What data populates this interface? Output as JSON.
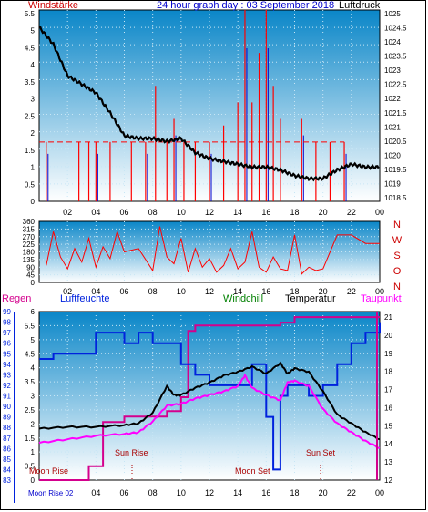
{
  "colors": {
    "bg_top": "#0a86c8",
    "bg_bottom": "#ffffff",
    "grid": "#c8e6f5",
    "red_label": "#cc0000",
    "blue_label": "#0000cc",
    "pressure": "#000000",
    "wind": "#ff0000",
    "windchill": "#008000",
    "temperature": "#000000",
    "taupunkt": "#ff00ff",
    "humidity": "#0022dd",
    "rain": "#d4008d",
    "dir": "#ff0000"
  },
  "top": {
    "title": "24 hour graph day : 03 September 2018",
    "left_label": "Windstärke",
    "right_label": "Luftdruck",
    "wind_axis": [
      "5.5",
      "5",
      "4.5",
      "4",
      "3.5",
      "3",
      "2.5",
      "2",
      "1.5",
      "1",
      "0.5",
      "0"
    ],
    "pressure_axis": [
      "1025",
      "1024.5",
      "1024",
      "1023.5",
      "1023",
      "1022.5",
      "1022",
      "1021.5",
      "1021",
      "1020.5",
      "1020",
      "1019.5",
      "1019",
      "1018.5"
    ],
    "x_ticks": [
      "02",
      "04",
      "06",
      "08",
      "10",
      "12",
      "14",
      "16",
      "18",
      "20",
      "22",
      "00"
    ]
  },
  "mid": {
    "dir_axis": [
      "360",
      "315",
      "270",
      "225",
      "180",
      "135",
      "90",
      "45",
      "0"
    ],
    "compass": [
      "N",
      "W",
      "S",
      "O",
      "N"
    ],
    "x_ticks": [
      "02",
      "04",
      "06",
      "08",
      "10",
      "12",
      "14",
      "16",
      "18",
      "20",
      "22",
      "00"
    ]
  },
  "bottom": {
    "labels": {
      "regen": "Regen",
      "luftfeuchte": "Luftfeuchte",
      "windchill": "Windchill",
      "temperatur": "Temperatur",
      "taupunkt": "Taupunkt"
    },
    "rain_axis": [
      "99",
      "98",
      "97",
      "96",
      "95",
      "94",
      "93",
      "92",
      "91",
      "90",
      "89",
      "88",
      "87",
      "86",
      "85",
      "84",
      "83"
    ],
    "hum_axis": [
      "6",
      "5.5",
      "5",
      "4.5",
      "4",
      "3.5",
      "3",
      "2.5",
      "2",
      "1.5",
      "1",
      "0.5",
      "0"
    ],
    "temp_axis": [
      "21",
      "20",
      "19",
      "18",
      "17",
      "16",
      "15",
      "14",
      "13",
      "12"
    ],
    "annotations": {
      "sun_rise": "Sun Rise",
      "sun_set": "Sun Set",
      "moon_rise_inner": "Moon Rise",
      "moon_set": "Moon Set",
      "moon_rise_bottom": "Moon Rise 02"
    },
    "x_ticks": [
      "04",
      "06",
      "08",
      "10",
      "12",
      "14",
      "16",
      "18",
      "20",
      "22",
      "00"
    ]
  },
  "chart_data": [
    {
      "type": "line",
      "title": "24 hour graph day : 03 September 2018",
      "xlabel": "",
      "x": [
        "00",
        "02",
        "04",
        "06",
        "08",
        "10",
        "12",
        "14",
        "16",
        "18",
        "20",
        "22",
        "00"
      ],
      "series": [
        {
          "name": "Luftdruck",
          "axis": "right",
          "ylim": [
            1018.5,
            1025.2
          ],
          "points": [
            [
              0,
              1024.6
            ],
            [
              1,
              1024.0
            ],
            [
              2,
              1022.9
            ],
            [
              3,
              1022.6
            ],
            [
              4,
              1022.3
            ],
            [
              5,
              1021.6
            ],
            [
              6,
              1020.8
            ],
            [
              7,
              1020.7
            ],
            [
              8,
              1020.7
            ],
            [
              9,
              1020.6
            ],
            [
              10,
              1020.7
            ],
            [
              11,
              1020.2
            ],
            [
              12,
              1020.0
            ],
            [
              13,
              1019.9
            ],
            [
              14,
              1019.8
            ],
            [
              15,
              1019.7
            ],
            [
              16,
              1019.7
            ],
            [
              17,
              1019.6
            ],
            [
              18,
              1019.4
            ],
            [
              19,
              1019.3
            ],
            [
              20,
              1019.3
            ],
            [
              21,
              1019.6
            ],
            [
              22,
              1019.8
            ],
            [
              23,
              1019.7
            ],
            [
              24,
              1019.7
            ]
          ]
        },
        {
          "name": "Windstärke",
          "axis": "left",
          "ylim": [
            0,
            5.8
          ],
          "points": [
            [
              0.5,
              1.8
            ],
            [
              2.8,
              1.8
            ],
            [
              3.5,
              1.8
            ],
            [
              4.0,
              1.8
            ],
            [
              5.0,
              1.8
            ],
            [
              6.5,
              1.8
            ],
            [
              7.5,
              1.8
            ],
            [
              8.2,
              3.5
            ],
            [
              9.0,
              1.8
            ],
            [
              9.5,
              2.5
            ],
            [
              10.2,
              1.8
            ],
            [
              11.0,
              1.8
            ],
            [
              12.0,
              1.8
            ],
            [
              13.0,
              2.3
            ],
            [
              14.0,
              3.0
            ],
            [
              14.5,
              5.8
            ],
            [
              15.0,
              3.0
            ],
            [
              15.5,
              4.5
            ],
            [
              16.0,
              5.8
            ],
            [
              16.5,
              3.5
            ],
            [
              17.0,
              2.5
            ],
            [
              18.5,
              2.5
            ],
            [
              19.5,
              1.8
            ],
            [
              20.5,
              1.8
            ],
            [
              21.5,
              1.8
            ]
          ]
        }
      ]
    },
    {
      "type": "scatter",
      "xlabel": "",
      "ylabel": "",
      "ylim": [
        0,
        360
      ],
      "x": [
        "02",
        "04",
        "06",
        "08",
        "10",
        "12",
        "14",
        "16",
        "18",
        "20",
        "22",
        "00"
      ],
      "series": [
        {
          "name": "",
          "points": [
            [
              0.5,
              100
            ],
            [
              1,
              300
            ],
            [
              1.5,
              150
            ],
            [
              2,
              80
            ],
            [
              2.5,
              200
            ],
            [
              3,
              120
            ],
            [
              3.5,
              260
            ],
            [
              4,
              90
            ],
            [
              4.5,
              210
            ],
            [
              5,
              140
            ],
            [
              5.5,
              300
            ],
            [
              6,
              180
            ],
            [
              7,
              200
            ],
            [
              8,
              70
            ],
            [
              8.5,
              330
            ],
            [
              9,
              150
            ],
            [
              9.5,
              110
            ],
            [
              10,
              260
            ],
            [
              10.5,
              60
            ],
            [
              11,
              200
            ],
            [
              11.5,
              90
            ],
            [
              12,
              140
            ],
            [
              12.5,
              60
            ],
            [
              13,
              100
            ],
            [
              13.5,
              200
            ],
            [
              14,
              80
            ],
            [
              14.5,
              120
            ],
            [
              15,
              300
            ],
            [
              15.5,
              90
            ],
            [
              16,
              60
            ],
            [
              16.5,
              150
            ],
            [
              17,
              80
            ],
            [
              17.5,
              70
            ],
            [
              18,
              280
            ],
            [
              18.5,
              50
            ],
            [
              19,
              90
            ],
            [
              19.5,
              70
            ],
            [
              20,
              80
            ],
            [
              21,
              280
            ],
            [
              22,
              280
            ],
            [
              23,
              230
            ],
            [
              24,
              230
            ]
          ]
        }
      ]
    },
    {
      "type": "line",
      "xlabel": "",
      "x": [
        "00",
        "02",
        "04",
        "06",
        "08",
        "10",
        "12",
        "14",
        "16",
        "18",
        "20",
        "22",
        "00"
      ],
      "series": [
        {
          "name": "Temperatur",
          "axis": "temp",
          "ylim": [
            12,
            21.5
          ],
          "points": [
            [
              0,
              14.9
            ],
            [
              2,
              15.0
            ],
            [
              4,
              15.0
            ],
            [
              6,
              15.1
            ],
            [
              7,
              15.2
            ],
            [
              8,
              15.8
            ],
            [
              9,
              17.3
            ],
            [
              9.5,
              16.8
            ],
            [
              10,
              16.8
            ],
            [
              11,
              17.2
            ],
            [
              12,
              17.5
            ],
            [
              13,
              17.9
            ],
            [
              14,
              18.1
            ],
            [
              15,
              18.4
            ],
            [
              16,
              18.0
            ],
            [
              17,
              18.6
            ],
            [
              17.5,
              18.0
            ],
            [
              18,
              18.3
            ],
            [
              19,
              18.1
            ],
            [
              20,
              17.0
            ],
            [
              21,
              15.7
            ],
            [
              22,
              15.2
            ],
            [
              23,
              14.7
            ],
            [
              24,
              14.3
            ]
          ]
        },
        {
          "name": "Taupunkt",
          "axis": "temp",
          "ylim": [
            12,
            21.5
          ],
          "points": [
            [
              0,
              14.1
            ],
            [
              2,
              14.3
            ],
            [
              4,
              14.5
            ],
            [
              6,
              14.6
            ],
            [
              7,
              14.7
            ],
            [
              8,
              15.3
            ],
            [
              9,
              16.2
            ],
            [
              10,
              16.3
            ],
            [
              11,
              16.6
            ],
            [
              12,
              16.8
            ],
            [
              13,
              17.0
            ],
            [
              14,
              17.3
            ],
            [
              14.5,
              17.9
            ],
            [
              15,
              17.2
            ],
            [
              16,
              16.8
            ],
            [
              17,
              16.5
            ],
            [
              17.5,
              17.5
            ],
            [
              18,
              17.6
            ],
            [
              19,
              17.3
            ],
            [
              20,
              16.0
            ],
            [
              21,
              15.2
            ],
            [
              22,
              14.7
            ],
            [
              23,
              14.2
            ],
            [
              24,
              13.8
            ]
          ]
        },
        {
          "name": "Luftfeuchte",
          "axis": "rain",
          "ylim": [
            83,
            99
          ],
          "points": [
            [
              0,
              94.5
            ],
            [
              1,
              95
            ],
            [
              2,
              95
            ],
            [
              3,
              95
            ],
            [
              4,
              97
            ],
            [
              5,
              97
            ],
            [
              6,
              96
            ],
            [
              7,
              97
            ],
            [
              8,
              96
            ],
            [
              9,
              96
            ],
            [
              10,
              94
            ],
            [
              11,
              93
            ],
            [
              12,
              92
            ],
            [
              13,
              92
            ],
            [
              14,
              92
            ],
            [
              15,
              94
            ],
            [
              16,
              89
            ],
            [
              16.5,
              84
            ],
            [
              17,
              91
            ],
            [
              17.5,
              92
            ],
            [
              18,
              92
            ],
            [
              19,
              91
            ],
            [
              20,
              92
            ],
            [
              21,
              94
            ],
            [
              22,
              96
            ],
            [
              23,
              97
            ],
            [
              24,
              98
            ]
          ]
        },
        {
          "name": "Regen",
          "axis": "hum",
          "ylim": [
            0,
            6
          ],
          "points": [
            [
              0,
              0
            ],
            [
              2,
              0
            ],
            [
              3.5,
              0.5
            ],
            [
              4.5,
              2.1
            ],
            [
              6,
              2.3
            ],
            [
              7,
              2.3
            ],
            [
              8,
              2.3
            ],
            [
              9,
              2.5
            ],
            [
              10,
              3.0
            ],
            [
              10.5,
              5.4
            ],
            [
              11,
              5.6
            ],
            [
              14,
              5.6
            ],
            [
              16,
              5.6
            ],
            [
              17,
              5.7
            ],
            [
              18,
              5.9
            ],
            [
              20,
              5.9
            ],
            [
              24,
              5.9
            ]
          ]
        }
      ]
    }
  ]
}
